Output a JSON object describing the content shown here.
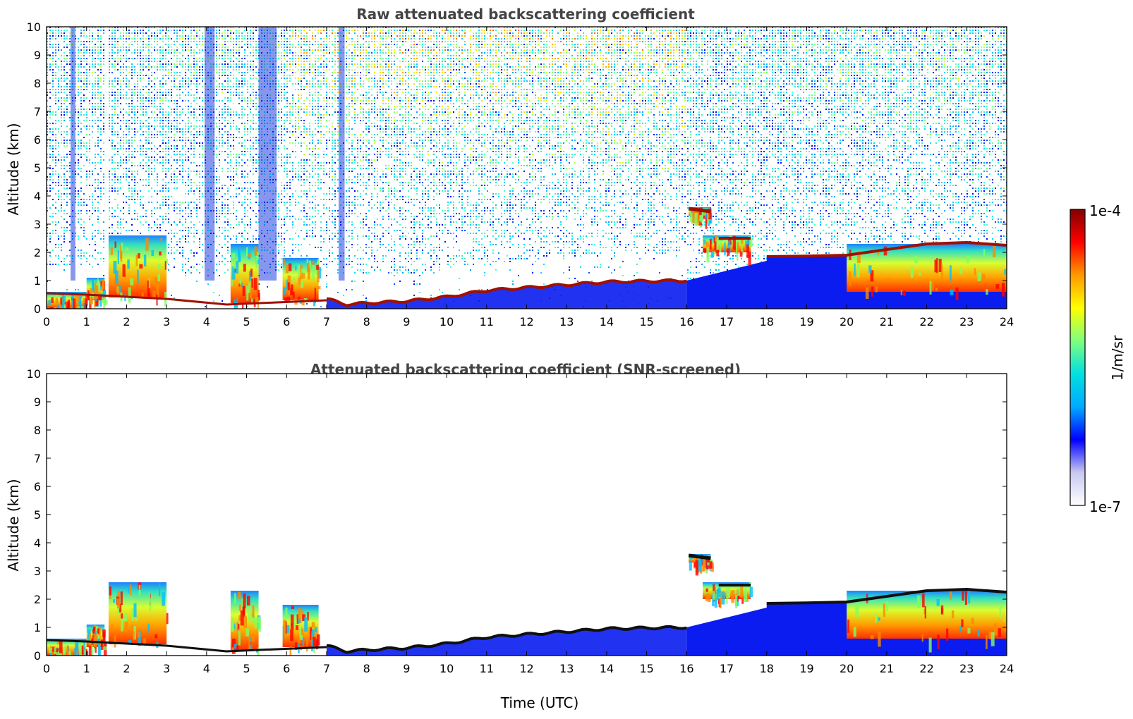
{
  "chart_data": [
    {
      "type": "heatmap",
      "title": "Raw attenuated backscattering coefficient",
      "xlabel": "",
      "ylabel": "Altitude (km)",
      "xlim": [
        0,
        24
      ],
      "ylim": [
        0,
        10
      ],
      "x_ticks": [
        "0",
        "1",
        "2",
        "3",
        "4",
        "5",
        "6",
        "7",
        "8",
        "9",
        "10",
        "11",
        "12",
        "13",
        "14",
        "15",
        "16",
        "17",
        "18",
        "19",
        "20",
        "21",
        "22",
        "23",
        "24"
      ],
      "y_ticks": [
        "0",
        "1",
        "2",
        "3",
        "4",
        "5",
        "6",
        "7",
        "8",
        "9",
        "10"
      ],
      "grid": false,
      "noise_background": true,
      "boundary_layer_top_km": [
        {
          "t": 0,
          "h": 0.55
        },
        {
          "t": 1,
          "h": 0.5
        },
        {
          "t": 2,
          "h": 0.45
        },
        {
          "t": 3,
          "h": 0.35
        },
        {
          "t": 4,
          "h": 0.2
        },
        {
          "t": 5,
          "h": 0.12
        },
        {
          "t": 6,
          "h": 0.1
        },
        {
          "t": 7,
          "h": 0.35
        },
        {
          "t": 7.5,
          "h": 0.15
        },
        {
          "t": 8,
          "h": 0.2
        },
        {
          "t": 9,
          "h": 0.27
        },
        {
          "t": 10,
          "h": 0.42
        },
        {
          "t": 11,
          "h": 0.65
        },
        {
          "t": 12,
          "h": 0.75
        },
        {
          "t": 13,
          "h": 0.85
        },
        {
          "t": 14,
          "h": 0.95
        },
        {
          "t": 15,
          "h": 0.98
        },
        {
          "t": 16,
          "h": 1.0
        }
      ],
      "cloud_layers": [
        {
          "t0": 0.0,
          "t1": 1.0,
          "h0": 0.0,
          "h1": 0.6
        },
        {
          "t0": 1.0,
          "t1": 1.45,
          "h0": 0.3,
          "h1": 1.1
        },
        {
          "t0": 1.55,
          "t1": 3.0,
          "h0": 0.4,
          "h1": 2.6
        },
        {
          "t0": 4.6,
          "t1": 5.3,
          "h0": 0.2,
          "h1": 2.3
        },
        {
          "t0": 5.9,
          "t1": 6.8,
          "h0": 0.3,
          "h1": 1.8
        },
        {
          "t0": 16.05,
          "t1": 16.6,
          "h0": 3.3,
          "h1": 3.6
        },
        {
          "t0": 16.4,
          "t1": 17.6,
          "h0": 2.0,
          "h1": 2.6
        },
        {
          "t0": 20.0,
          "t1": 24.0,
          "h0": 0.6,
          "h1": 2.3
        }
      ],
      "upper_layer_top_km": [
        {
          "t": 18,
          "h": 1.85
        },
        {
          "t": 19,
          "h": 1.87
        },
        {
          "t": 20,
          "h": 1.9
        },
        {
          "t": 21,
          "h": 2.1
        },
        {
          "t": 22,
          "h": 2.3
        },
        {
          "t": 23,
          "h": 2.35
        },
        {
          "t": 24,
          "h": 2.25
        }
      ]
    },
    {
      "type": "heatmap",
      "title": "Attenuated backscattering coefficient (SNR-screened)",
      "xlabel": "Time (UTC)",
      "ylabel": "Altitude (km)",
      "xlim": [
        0,
        24
      ],
      "ylim": [
        0,
        10
      ],
      "x_ticks": [
        "0",
        "1",
        "2",
        "3",
        "4",
        "5",
        "6",
        "7",
        "8",
        "9",
        "10",
        "11",
        "12",
        "13",
        "14",
        "15",
        "16",
        "17",
        "18",
        "19",
        "20",
        "21",
        "22",
        "23",
        "24"
      ],
      "y_ticks": [
        "0",
        "1",
        "2",
        "3",
        "4",
        "5",
        "6",
        "7",
        "8",
        "9",
        "10"
      ],
      "grid": false,
      "noise_background": false
    }
  ],
  "colorbar": {
    "min_label": "1e-7",
    "max_label": "1e-4",
    "unit_label": "1/m/sr",
    "scale": "log",
    "colormap": [
      "#ffffff",
      "#c8c8f0",
      "#0000ff",
      "#00aaff",
      "#00e0e0",
      "#7fff7f",
      "#ffff00",
      "#ff9900",
      "#ff0000",
      "#800000"
    ]
  }
}
